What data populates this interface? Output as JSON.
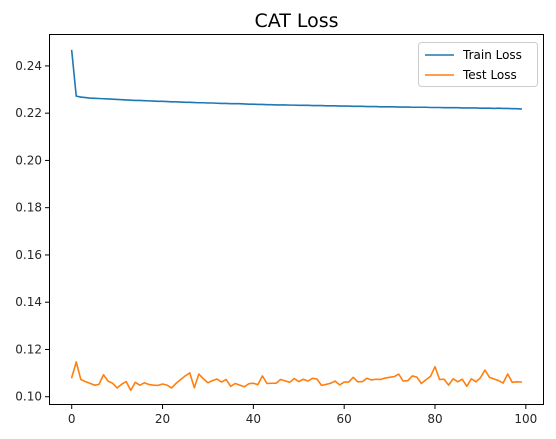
{
  "chart_data": {
    "type": "line",
    "title": "CAT Loss",
    "xlabel": "",
    "ylabel": "",
    "xlim": [
      -5,
      104
    ],
    "ylim": [
      0.0965,
      0.2535
    ],
    "x_ticks": [
      0,
      20,
      40,
      60,
      80,
      100
    ],
    "y_ticks": [
      0.1,
      0.12,
      0.14,
      0.16,
      0.18,
      0.2,
      0.22,
      0.24
    ],
    "grid": false,
    "legend_position": "top-right",
    "x": [
      0,
      1,
      2,
      3,
      4,
      5,
      6,
      7,
      8,
      9,
      10,
      11,
      12,
      13,
      14,
      15,
      16,
      17,
      18,
      19,
      20,
      21,
      22,
      23,
      24,
      25,
      26,
      27,
      28,
      29,
      30,
      31,
      32,
      33,
      34,
      35,
      36,
      37,
      38,
      39,
      40,
      41,
      42,
      43,
      44,
      45,
      46,
      47,
      48,
      49,
      50,
      51,
      52,
      53,
      54,
      55,
      56,
      57,
      58,
      59,
      60,
      61,
      62,
      63,
      64,
      65,
      66,
      67,
      68,
      69,
      70,
      71,
      72,
      73,
      74,
      75,
      76,
      77,
      78,
      79,
      80,
      81,
      82,
      83,
      84,
      85,
      86,
      87,
      88,
      89,
      90,
      91,
      92,
      93,
      94,
      95,
      96,
      97,
      98,
      99
    ],
    "series": [
      {
        "name": "Train Loss",
        "color": "#1f77b4",
        "values": [
          0.2465,
          0.2272,
          0.2268,
          0.2266,
          0.2264,
          0.2263,
          0.2262,
          0.2261,
          0.226,
          0.2259,
          0.2258,
          0.2257,
          0.2256,
          0.2255,
          0.2254,
          0.2254,
          0.2253,
          0.2252,
          0.2251,
          0.225,
          0.225,
          0.2249,
          0.2248,
          0.2248,
          0.2247,
          0.2246,
          0.2246,
          0.2245,
          0.2244,
          0.2244,
          0.2243,
          0.2243,
          0.2242,
          0.2241,
          0.2241,
          0.224,
          0.224,
          0.224,
          0.2239,
          0.2238,
          0.2238,
          0.2237,
          0.2237,
          0.2236,
          0.2236,
          0.2235,
          0.2235,
          0.2235,
          0.2234,
          0.2234,
          0.2233,
          0.2233,
          0.2233,
          0.2232,
          0.2232,
          0.2232,
          0.2231,
          0.2231,
          0.2231,
          0.223,
          0.223,
          0.223,
          0.2229,
          0.2229,
          0.2229,
          0.2228,
          0.2228,
          0.2228,
          0.2227,
          0.2227,
          0.2227,
          0.2227,
          0.2226,
          0.2226,
          0.2226,
          0.2225,
          0.2225,
          0.2225,
          0.2225,
          0.2224,
          0.2224,
          0.2224,
          0.2223,
          0.2223,
          0.2223,
          0.2223,
          0.2222,
          0.2222,
          0.2222,
          0.2222,
          0.2221,
          0.2221,
          0.2221,
          0.222,
          0.2221,
          0.222,
          0.222,
          0.2219,
          0.2219,
          0.2218
        ]
      },
      {
        "name": "Test Loss",
        "color": "#ff7f0e",
        "values": [
          0.1081,
          0.1147,
          0.1073,
          0.1064,
          0.1057,
          0.1049,
          0.1052,
          0.1093,
          0.1066,
          0.1057,
          0.1037,
          0.1053,
          0.1064,
          0.1027,
          0.1061,
          0.1049,
          0.1059,
          0.1052,
          0.1049,
          0.1048,
          0.1054,
          0.1049,
          0.1037,
          0.1057,
          0.1073,
          0.1088,
          0.1101,
          0.1038,
          0.1096,
          0.1076,
          0.1059,
          0.1068,
          0.1075,
          0.1062,
          0.1073,
          0.1044,
          0.1056,
          0.1049,
          0.1042,
          0.1055,
          0.1057,
          0.1051,
          0.1088,
          0.1056,
          0.1057,
          0.1057,
          0.1073,
          0.1067,
          0.1061,
          0.1077,
          0.1064,
          0.1074,
          0.1066,
          0.1078,
          0.1075,
          0.1048,
          0.1052,
          0.1057,
          0.1066,
          0.105,
          0.1062,
          0.1062,
          0.1082,
          0.1063,
          0.1064,
          0.1078,
          0.1071,
          0.1074,
          0.1073,
          0.1079,
          0.1082,
          0.1085,
          0.1096,
          0.1066,
          0.1068,
          0.1088,
          0.1083,
          0.1056,
          0.1072,
          0.1086,
          0.1127,
          0.1073,
          0.1074,
          0.1049,
          0.1076,
          0.1063,
          0.1074,
          0.1044,
          0.1076,
          0.1063,
          0.108,
          0.1113,
          0.1082,
          0.1075,
          0.1068,
          0.1058,
          0.1096,
          0.1061,
          0.1063,
          0.1062
        ]
      }
    ]
  }
}
